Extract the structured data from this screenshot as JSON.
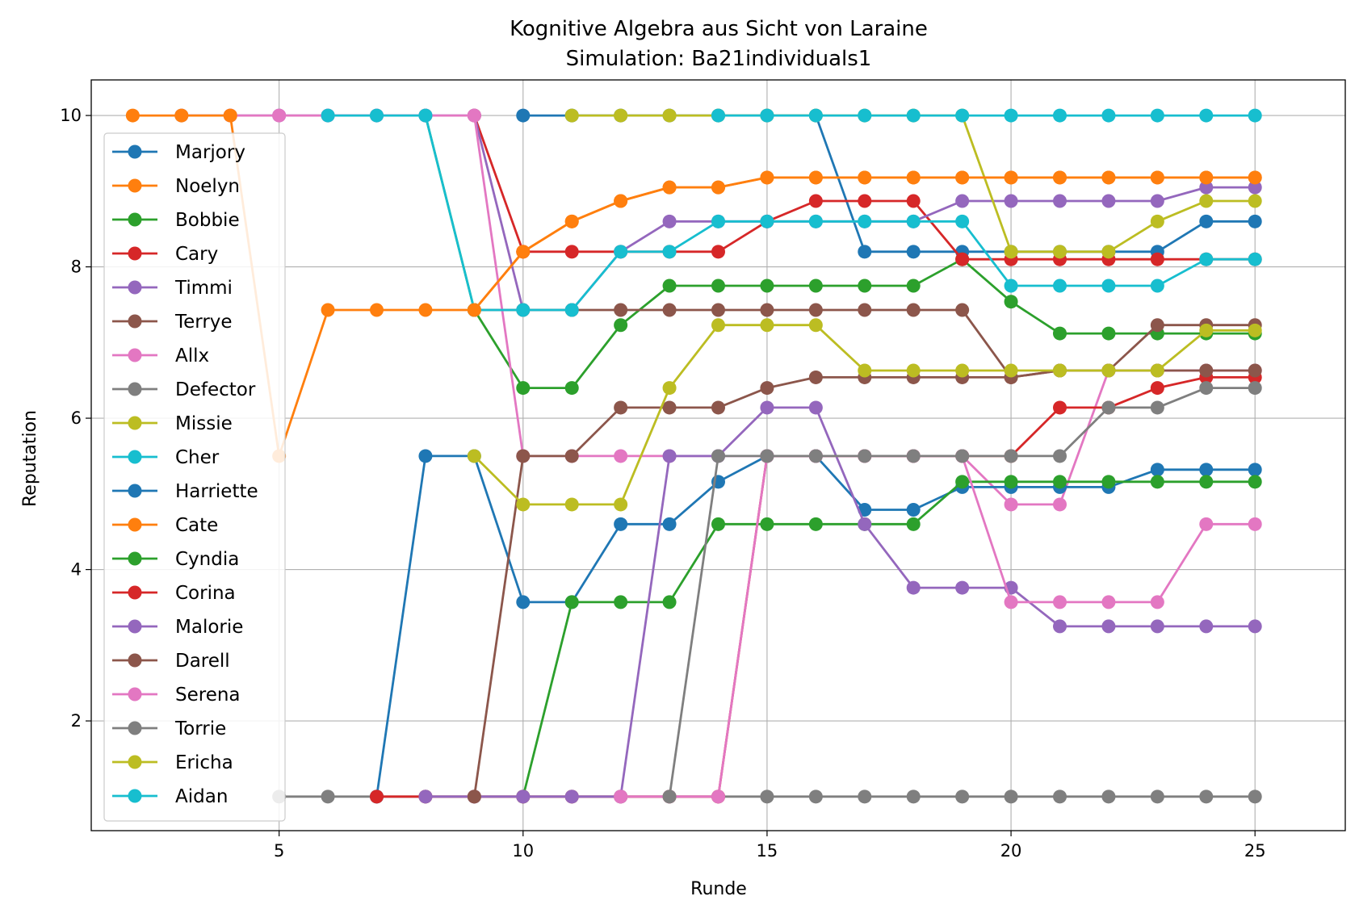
{
  "chart_data": {
    "type": "line",
    "title": "Kognitive Algebra aus Sicht von Laraine",
    "subtitle": "Simulation: Ba21individuals1",
    "xlabel": "Runde",
    "ylabel": "Reputation",
    "xlim": [
      1.15,
      26.85
    ],
    "ylim": [
      0.55,
      10.47
    ],
    "xticks": [
      5,
      10,
      15,
      20,
      25
    ],
    "yticks": [
      2,
      4,
      6,
      8,
      10
    ],
    "grid": true,
    "legend_position": "left",
    "series": [
      {
        "name": "Marjory",
        "color": "#1f77b4",
        "x": [
          10,
          11,
          12,
          13,
          14,
          15,
          16,
          17,
          18,
          19,
          20,
          21,
          22,
          23,
          24,
          25
        ],
        "y": [
          10,
          10,
          10,
          10,
          10,
          10,
          10,
          8.2,
          8.2,
          8.2,
          8.2,
          8.2,
          8.2,
          8.2,
          8.6,
          8.6
        ]
      },
      {
        "name": "Noelyn",
        "color": "#ff7f0e",
        "x": [
          9,
          10,
          11,
          12,
          13,
          14,
          15,
          16,
          17,
          18,
          19,
          20,
          21,
          22,
          23,
          24,
          25
        ],
        "y": [
          7.43,
          8.2,
          8.6,
          8.87,
          9.05,
          9.05,
          9.18,
          9.18,
          9.18,
          9.18,
          9.18,
          9.18,
          9.18,
          9.18,
          9.18,
          9.18,
          9.18
        ]
      },
      {
        "name": "Bobbie",
        "color": "#2ca02c",
        "x": [
          8,
          9,
          10,
          11,
          12,
          13,
          14,
          15,
          16,
          17,
          18,
          19,
          20,
          21,
          22,
          23,
          24,
          25
        ],
        "y": [
          10,
          7.43,
          6.4,
          6.4,
          7.23,
          7.75,
          7.75,
          7.75,
          7.75,
          7.75,
          7.75,
          8.1,
          7.54,
          7.12,
          7.12,
          7.12,
          7.12,
          7.12
        ]
      },
      {
        "name": "Cary",
        "color": "#d62728",
        "x": [
          9,
          10,
          11,
          12,
          13,
          14,
          15,
          16,
          17,
          18,
          19,
          20,
          21,
          22,
          23,
          24,
          25
        ],
        "y": [
          10,
          8.2,
          8.2,
          8.2,
          8.2,
          8.2,
          8.6,
          8.87,
          8.87,
          8.87,
          8.1,
          8.1,
          8.1,
          8.1,
          8.1,
          8.1,
          8.1
        ]
      },
      {
        "name": "Timmi",
        "color": "#9467bd",
        "x": [
          3,
          4,
          5,
          6,
          7,
          8,
          9,
          10,
          11,
          12,
          13,
          14,
          15,
          16,
          17,
          18,
          19,
          20,
          21,
          22,
          23,
          24,
          25
        ],
        "y": [
          10,
          10,
          10,
          10,
          10,
          10,
          10,
          7.43,
          7.43,
          8.2,
          8.6,
          8.6,
          8.6,
          8.6,
          8.6,
          8.6,
          8.87,
          8.87,
          8.87,
          8.87,
          8.87,
          9.05,
          9.05
        ]
      },
      {
        "name": "Terrye",
        "color": "#8c564b",
        "x": [
          9,
          10,
          11,
          12,
          13,
          14,
          15,
          16,
          17,
          18,
          19,
          20,
          21,
          22,
          23,
          24,
          25
        ],
        "y": [
          7.43,
          7.43,
          7.43,
          7.43,
          7.43,
          7.43,
          7.43,
          7.43,
          7.43,
          7.43,
          7.43,
          6.54,
          6.63,
          6.63,
          7.23,
          7.23,
          7.23
        ]
      },
      {
        "name": "Allx",
        "color": "#e377c2",
        "x": [
          4,
          5,
          6,
          7,
          8,
          9,
          10,
          11,
          12,
          13,
          14,
          15,
          16,
          17,
          18,
          19,
          20,
          21,
          22,
          23,
          24,
          25
        ],
        "y": [
          10,
          10,
          10,
          10,
          10,
          10,
          5.5,
          5.5,
          5.5,
          5.5,
          5.5,
          5.5,
          5.5,
          5.5,
          5.5,
          5.5,
          4.86,
          4.86,
          6.63,
          6.63,
          6.63,
          6.63
        ]
      },
      {
        "name": "Defector",
        "color": "#7f7f7f",
        "x": [
          5,
          6,
          7,
          8,
          9,
          10,
          11,
          12,
          13,
          14,
          15,
          16,
          17,
          18,
          19,
          20,
          21,
          22,
          23,
          24,
          25
        ],
        "y": [
          1,
          1,
          1,
          1,
          1,
          1,
          1,
          1,
          1,
          1,
          1,
          1,
          1,
          1,
          1,
          1,
          1,
          1,
          1,
          1,
          1
        ]
      },
      {
        "name": "Missie",
        "color": "#bcbd22",
        "x": [
          11,
          12,
          13,
          14,
          15,
          16,
          17,
          18,
          19,
          20,
          21,
          22,
          23,
          24,
          25
        ],
        "y": [
          10,
          10,
          10,
          10,
          10,
          10,
          10,
          10,
          10,
          8.2,
          8.2,
          8.2,
          8.6,
          8.87,
          8.87
        ]
      },
      {
        "name": "Cher",
        "color": "#17becf",
        "x": [
          6,
          7,
          8,
          9,
          10,
          11,
          12,
          13,
          14,
          15,
          16,
          17,
          18,
          19,
          20,
          21,
          22,
          23,
          24,
          25
        ],
        "y": [
          10,
          10,
          10,
          7.43,
          7.43,
          7.43,
          8.2,
          8.2,
          8.6,
          8.6,
          8.6,
          8.6,
          8.6,
          8.6,
          7.75,
          7.75,
          7.75,
          7.75,
          8.1,
          8.1
        ]
      },
      {
        "name": "Harriette",
        "color": "#1f77b4",
        "x": [
          7,
          8,
          9,
          10,
          11,
          12,
          13,
          14,
          15,
          16,
          17,
          18,
          19,
          20,
          21,
          22,
          23,
          24,
          25
        ],
        "y": [
          1,
          5.5,
          5.5,
          3.57,
          3.57,
          4.6,
          4.6,
          5.16,
          5.5,
          5.5,
          4.79,
          4.79,
          5.09,
          5.09,
          5.09,
          5.09,
          5.32,
          5.32,
          5.32
        ]
      },
      {
        "name": "Cate",
        "color": "#ff7f0e",
        "x": [
          2,
          3,
          4,
          5,
          6,
          7,
          8,
          9,
          10,
          11,
          12,
          13,
          14,
          15,
          16,
          17,
          18,
          19,
          20,
          21,
          22,
          23,
          24,
          25
        ],
        "y": [
          10,
          10,
          10,
          5.5,
          7.43,
          7.43,
          7.43,
          7.43,
          8.2,
          8.6,
          8.87,
          9.05,
          9.05,
          9.18,
          9.18,
          9.18,
          9.18,
          9.18,
          9.18,
          9.18,
          9.18,
          9.18,
          9.18,
          9.18
        ]
      },
      {
        "name": "Cyndia",
        "color": "#2ca02c",
        "x": [
          10,
          11,
          12,
          13,
          14,
          15,
          16,
          17,
          18,
          19,
          20,
          21,
          22,
          23,
          24,
          25
        ],
        "y": [
          1,
          3.57,
          3.57,
          3.57,
          4.6,
          4.6,
          4.6,
          4.6,
          4.6,
          5.16,
          5.16,
          5.16,
          5.16,
          5.16,
          5.16,
          5.16
        ]
      },
      {
        "name": "Corina",
        "color": "#d62728",
        "x": [
          7,
          8,
          9,
          10,
          11,
          12,
          13,
          14,
          15,
          16,
          17,
          18,
          19,
          20,
          21,
          22,
          23,
          24,
          25
        ],
        "y": [
          1,
          1,
          1,
          1,
          1,
          1,
          1,
          1,
          5.5,
          5.5,
          5.5,
          5.5,
          5.5,
          5.5,
          6.14,
          6.14,
          6.4,
          6.54,
          6.54
        ]
      },
      {
        "name": "Malorie",
        "color": "#9467bd",
        "x": [
          8,
          9,
          10,
          11,
          12,
          13,
          14,
          15,
          16,
          17,
          18,
          19,
          20,
          21,
          22,
          23,
          24,
          25
        ],
        "y": [
          1,
          1,
          1,
          1,
          1,
          5.5,
          5.5,
          6.14,
          6.14,
          4.6,
          3.76,
          3.76,
          3.76,
          3.25,
          3.25,
          3.25,
          3.25,
          3.25
        ]
      },
      {
        "name": "Darell",
        "color": "#8c564b",
        "x": [
          9,
          10,
          11,
          12,
          13,
          14,
          15,
          16,
          17,
          18,
          19,
          20,
          21,
          22,
          23,
          24,
          25
        ],
        "y": [
          1,
          5.5,
          5.5,
          6.14,
          6.14,
          6.14,
          6.4,
          6.54,
          6.54,
          6.54,
          6.54,
          6.54,
          6.63,
          6.63,
          6.63,
          6.63,
          6.63
        ]
      },
      {
        "name": "Serena",
        "color": "#e377c2",
        "x": [
          12,
          13,
          14,
          15,
          16,
          17,
          18,
          19,
          20,
          21,
          22,
          23,
          24,
          25
        ],
        "y": [
          1,
          1,
          1,
          5.5,
          5.5,
          5.5,
          5.5,
          5.5,
          3.57,
          3.57,
          3.57,
          3.57,
          4.6,
          4.6
        ]
      },
      {
        "name": "Torrie",
        "color": "#7f7f7f",
        "x": [
          13,
          14,
          15,
          16,
          17,
          18,
          19,
          20,
          21,
          22,
          23,
          24,
          25
        ],
        "y": [
          1,
          5.5,
          5.5,
          5.5,
          5.5,
          5.5,
          5.5,
          5.5,
          5.5,
          6.14,
          6.14,
          6.4,
          6.4
        ]
      },
      {
        "name": "Ericha",
        "color": "#bcbd22",
        "x": [
          9,
          10,
          11,
          12,
          13,
          14,
          15,
          16,
          17,
          18,
          19,
          20,
          21,
          22,
          23,
          24,
          25
        ],
        "y": [
          5.5,
          4.86,
          4.86,
          4.86,
          6.4,
          7.23,
          7.23,
          7.23,
          6.63,
          6.63,
          6.63,
          6.63,
          6.63,
          6.63,
          6.63,
          7.16,
          7.16
        ]
      },
      {
        "name": "Aidan",
        "color": "#17becf",
        "x": [
          14,
          15,
          16,
          17,
          18,
          19,
          20,
          21,
          22,
          23,
          24,
          25
        ],
        "y": [
          10,
          10,
          10,
          10,
          10,
          10,
          10,
          10,
          10,
          10,
          10,
          10
        ]
      }
    ]
  }
}
